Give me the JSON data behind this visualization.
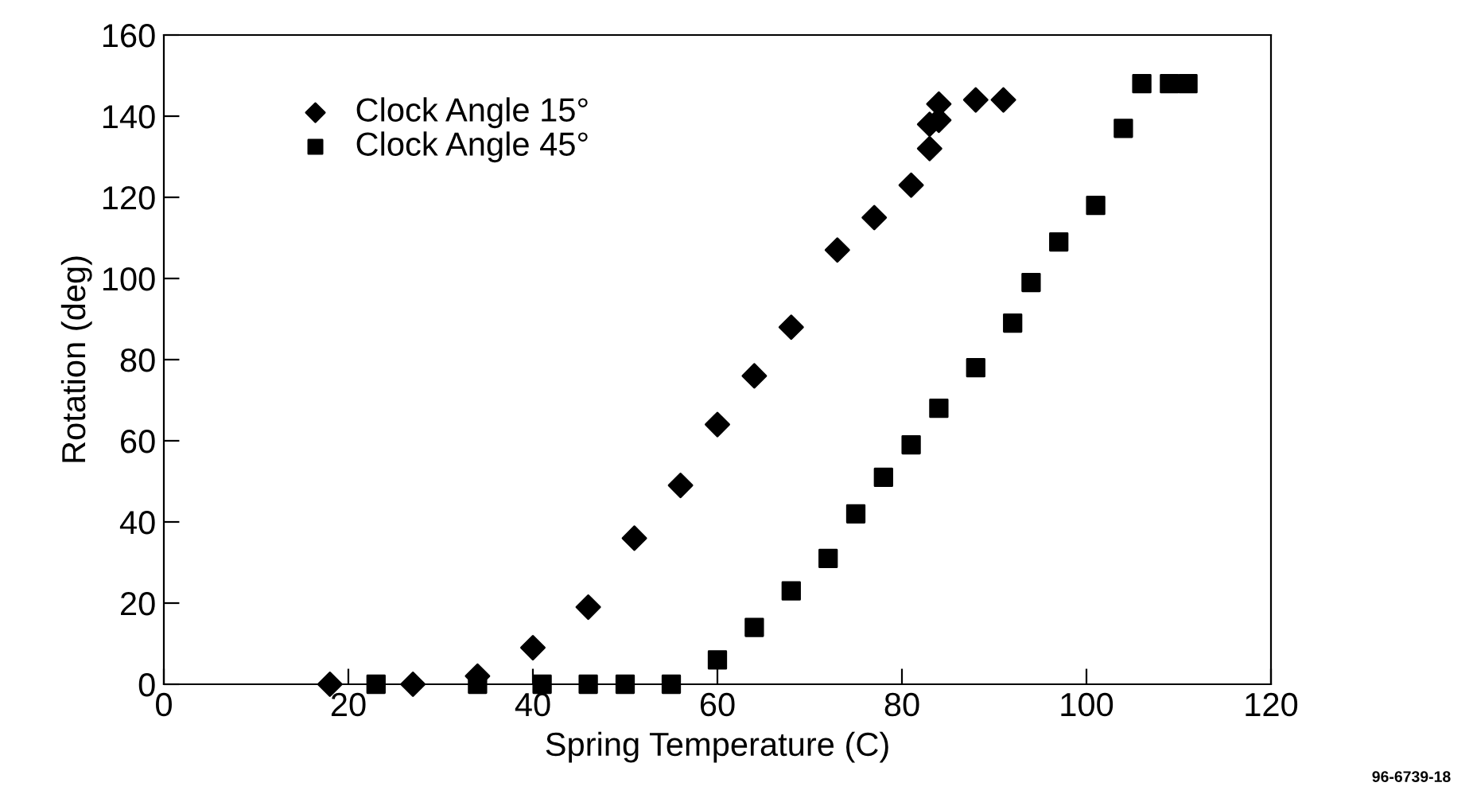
{
  "chart_data": {
    "type": "scatter",
    "xlabel": "Spring Temperature (C)",
    "ylabel": "Rotation (deg)",
    "xlim": [
      0,
      120
    ],
    "xticks": [
      0,
      20,
      40,
      60,
      80,
      100,
      120
    ],
    "ylim": [
      0,
      160
    ],
    "yticks": [
      0,
      20,
      40,
      60,
      80,
      100,
      120,
      140,
      160
    ],
    "grid": false,
    "legend": "top left",
    "annotations": [
      "96-6739-18"
    ],
    "series": [
      {
        "name": "Clock Angle 15°",
        "color": "#000000",
        "marker": "diamond",
        "x": [
          18,
          27,
          34,
          40,
          46,
          51,
          56,
          60,
          64,
          68,
          73,
          77,
          81,
          83,
          83,
          84,
          84,
          88,
          91
        ],
        "values": [
          0,
          0,
          2,
          9,
          19,
          36,
          49,
          64,
          76,
          88,
          107,
          115,
          123,
          132,
          138,
          139,
          143,
          144,
          144
        ]
      },
      {
        "name": "Clock Angle 45°",
        "color": "#000000",
        "marker": "square",
        "x": [
          23,
          34,
          41,
          46,
          50,
          55,
          60,
          64,
          68,
          72,
          75,
          78,
          81,
          84,
          88,
          92,
          94,
          97,
          101,
          104,
          106,
          109,
          111
        ],
        "values": [
          0,
          0,
          0,
          0,
          0,
          0,
          6,
          14,
          23,
          31,
          42,
          51,
          59,
          68,
          78,
          89,
          99,
          109,
          118,
          137,
          148,
          148,
          148
        ]
      }
    ]
  }
}
